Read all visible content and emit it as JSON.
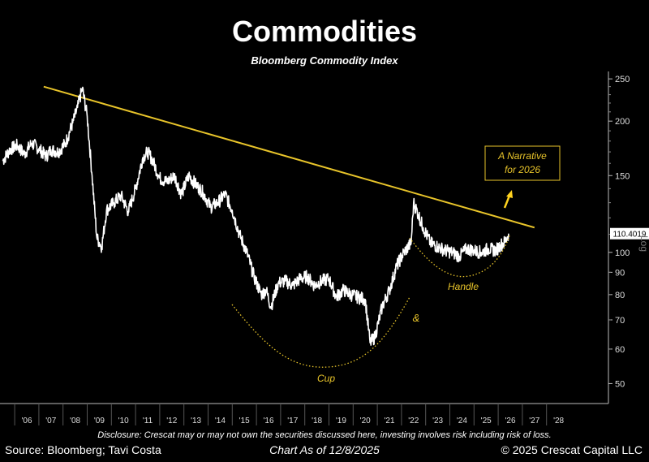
{
  "title": "Commodities",
  "subtitle": "Bloomberg Commodity Index",
  "footer": {
    "disclosure": "Disclosure: Crescat may or may not own the securities discussed here, investing involves risk including risk of loss.",
    "source": "Source: Bloomberg; Tavi Costa",
    "date": "Chart As of 12/8/2025",
    "copyright": "© 2025 Crescat Capital LLC"
  },
  "colors": {
    "line": "#ffffff",
    "trendline": "#e8c42a",
    "annotation": "#e8c42a",
    "background": "#000000"
  },
  "chart_data": {
    "type": "line",
    "scale": "log",
    "ylim": [
      45,
      260
    ],
    "xlim": [
      2005.5,
      2028.8
    ],
    "y_ticks": [
      50,
      60,
      70,
      80,
      90,
      100,
      150,
      200,
      250
    ],
    "x_ticks": [
      {
        "x": 2006,
        "label": "'06"
      },
      {
        "x": 2007,
        "label": "'07"
      },
      {
        "x": 2008,
        "label": "'08"
      },
      {
        "x": 2009,
        "label": "'09"
      },
      {
        "x": 2010,
        "label": "'10"
      },
      {
        "x": 2011,
        "label": "'11"
      },
      {
        "x": 2012,
        "label": "'12"
      },
      {
        "x": 2013,
        "label": "'13"
      },
      {
        "x": 2014,
        "label": "'14"
      },
      {
        "x": 2015,
        "label": "'15"
      },
      {
        "x": 2016,
        "label": "'16"
      },
      {
        "x": 2017,
        "label": "'17"
      },
      {
        "x": 2018,
        "label": "'18"
      },
      {
        "x": 2019,
        "label": "'19"
      },
      {
        "x": 2020,
        "label": "'20"
      },
      {
        "x": 2021,
        "label": "'21"
      },
      {
        "x": 2022,
        "label": "'22"
      },
      {
        "x": 2023,
        "label": "'23"
      },
      {
        "x": 2024,
        "label": "'24"
      },
      {
        "x": 2025,
        "label": "'25"
      },
      {
        "x": 2026,
        "label": "'26"
      },
      {
        "x": 2027,
        "label": "'27"
      },
      {
        "x": 2028,
        "label": "'28"
      }
    ],
    "axis_side_label": "Log",
    "last_value_label": "110.4019",
    "series": [
      {
        "x": [
          2005.0,
          2005.3,
          2005.6,
          2005.9,
          2006.2,
          2006.5,
          2006.8,
          2007.0,
          2007.3,
          2007.6,
          2007.9,
          2008.1,
          2008.3,
          2008.5,
          2008.7,
          2008.9,
          2009.1,
          2009.3,
          2009.6,
          2009.9,
          2010.2,
          2010.5,
          2010.8,
          2011.0,
          2011.2,
          2011.5,
          2011.8,
          2012.1,
          2012.4,
          2012.7,
          2013.0,
          2013.3,
          2013.6,
          2013.9,
          2014.2,
          2014.5,
          2014.8,
          2015.1,
          2015.4,
          2015.7,
          2015.9,
          2016.1,
          2016.4,
          2016.7,
          2017.0,
          2017.3,
          2017.6,
          2017.9,
          2018.2,
          2018.5,
          2018.8,
          2019.1,
          2019.4,
          2019.7,
          2020.0,
          2020.2,
          2020.4,
          2020.7,
          2021.0,
          2021.3,
          2021.6,
          2021.9,
          2022.0,
          2022.2,
          2022.4,
          2022.7,
          2023.0,
          2023.3,
          2023.6,
          2023.9,
          2024.2,
          2024.5,
          2024.8,
          2025.1,
          2025.4,
          2025.6,
          2025.8,
          2025.93
        ],
        "y": [
          162,
          172,
          176,
          168,
          178,
          173,
          166,
          172,
          170,
          178,
          198,
          215,
          238,
          205,
          150,
          108,
          103,
          125,
          130,
          135,
          124,
          140,
          165,
          170,
          163,
          148,
          145,
          150,
          136,
          150,
          143,
          137,
          127,
          130,
          136,
          125,
          110,
          100,
          88,
          80,
          82,
          75,
          85,
          86,
          84,
          87,
          88,
          84,
          86,
          87,
          79,
          82,
          80,
          79,
          78,
          62,
          64,
          75,
          82,
          93,
          100,
          105,
          130,
          122,
          114,
          105,
          103,
          101,
          100,
          98,
          102,
          101,
          100,
          102,
          101,
          104,
          106,
          110.4
        ]
      }
    ],
    "trendline": {
      "x": [
        2006.7,
        2027.0
      ],
      "y": [
        240,
        114
      ]
    },
    "annotations": [
      "A Narrative for 2026",
      "Cup",
      "&",
      "Handle"
    ]
  }
}
